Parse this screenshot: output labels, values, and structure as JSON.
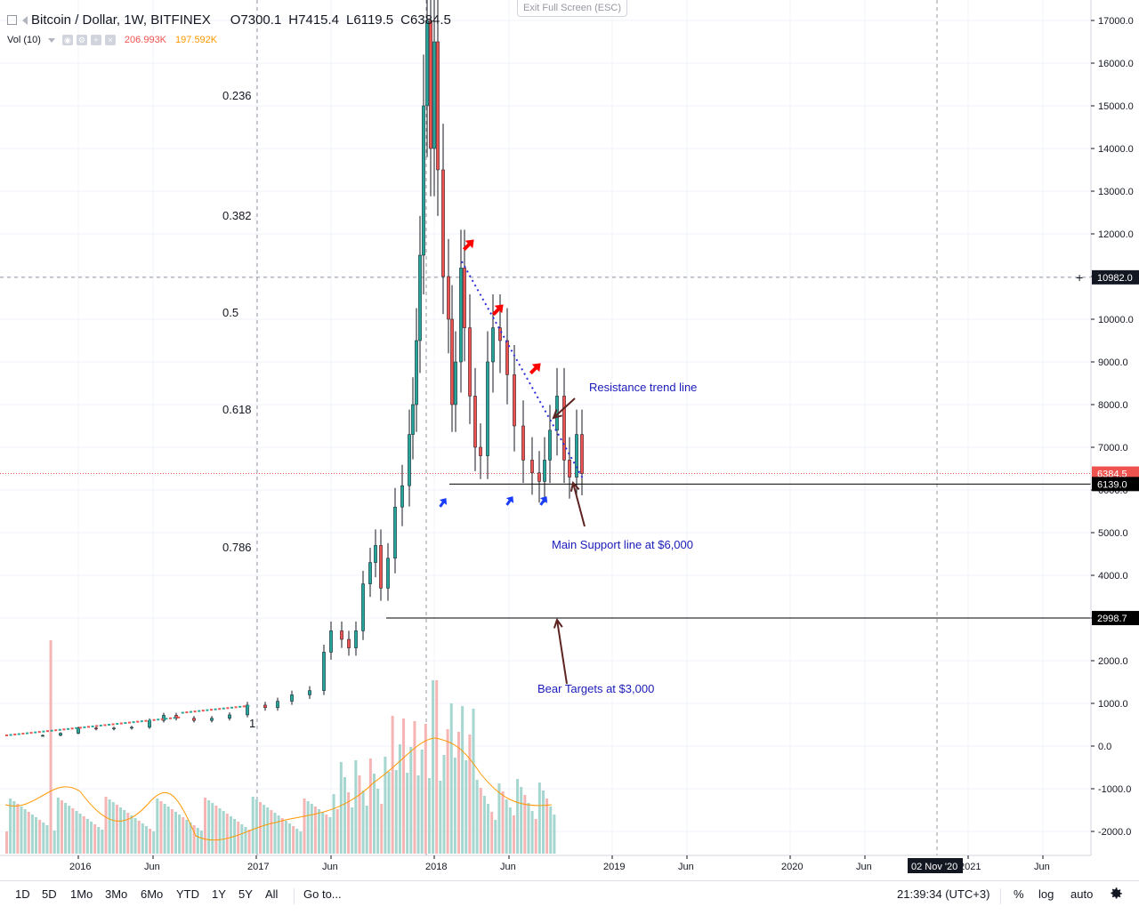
{
  "legend": {
    "symbol": "Bitcoin / Dollar, 1W, BITFINEX",
    "open_label": "O",
    "open": "7300.1",
    "high_label": "H",
    "high": "7415.4",
    "low_label": "L",
    "low": "6119.5",
    "close_label": "C",
    "close": "6384.5"
  },
  "volume": {
    "label": "Vol (10)",
    "value": "206.993K",
    "ma_value": "197.592K"
  },
  "exit_fullscreen": "Exit Full Screen (ESC)",
  "price_axis": {
    "ticks": [
      "17000.0",
      "16000.0",
      "15000.0",
      "14000.0",
      "13000.0",
      "12000.0",
      "11000.0",
      "10000.0",
      "9000.0",
      "8000.0",
      "7000.0",
      "6000.0",
      "5000.0",
      "4000.0",
      "3000.0",
      "2000.0",
      "1000.0",
      "0.0",
      "-1000.0",
      "-2000.0"
    ],
    "crosshair_price": "10982.0",
    "last_price": "6384.5",
    "support_price": "6139.0",
    "bear_target_price": "2998.7"
  },
  "time_axis": {
    "ticks": [
      "2016",
      "Jun",
      "2017",
      "Jun",
      "2018",
      "Jun",
      "2019",
      "Jun",
      "2020",
      "Jun",
      "2021",
      "Jun"
    ],
    "crosshair_date": "02 Nov '20"
  },
  "fib_levels": [
    "0.236",
    "0.382",
    "0.5",
    "0.618",
    "0.786",
    "1"
  ],
  "annotations": {
    "resistance": "Resistance trend line",
    "support": "Main Support line at $6,000",
    "bear": "Bear Targets at $3,000"
  },
  "colors": {
    "up": "#26a69a",
    "down": "#ef5350",
    "volume_up": "#a5d6cf",
    "volume_down": "#f5b5b4",
    "ma": "#ff9800",
    "annotation_text": "#1a1aba",
    "trend_line": "#2d2dd8",
    "red_arrow": "#ff0000",
    "blue_arrow": "#1a3cff",
    "brown_arrow": "#5d2320"
  },
  "toolbar": {
    "timeframes": [
      "1D",
      "5D",
      "1Mo",
      "3Mo",
      "6Mo",
      "YTD",
      "1Y",
      "5Y",
      "All"
    ],
    "goto": "Go to...",
    "clock": "21:39:34 (UTC+3)",
    "percent": "%",
    "log": "log",
    "auto": "auto"
  },
  "chart_data": {
    "type": "candlestick",
    "title": "Bitcoin / Dollar, 1W, BITFINEX",
    "price_series": [
      [
        2015.8,
        250
      ],
      [
        2015.9,
        300
      ],
      [
        2016.0,
        420
      ],
      [
        2016.1,
        400
      ],
      [
        2016.2,
        420
      ],
      [
        2016.3,
        440
      ],
      [
        2016.4,
        600
      ],
      [
        2016.48,
        720
      ],
      [
        2016.55,
        650
      ],
      [
        2016.65,
        600
      ],
      [
        2016.75,
        650
      ],
      [
        2016.85,
        730
      ],
      [
        2016.95,
        960
      ],
      [
        2017.05,
        900
      ],
      [
        2017.12,
        1050
      ],
      [
        2017.2,
        1200
      ],
      [
        2017.3,
        1300
      ],
      [
        2017.38,
        2200
      ],
      [
        2017.42,
        2700
      ],
      [
        2017.48,
        2500
      ],
      [
        2017.52,
        2300
      ],
      [
        2017.56,
        2700
      ],
      [
        2017.6,
        3800
      ],
      [
        2017.64,
        4300
      ],
      [
        2017.67,
        4700
      ],
      [
        2017.7,
        3700
      ],
      [
        2017.74,
        4400
      ],
      [
        2017.78,
        5600
      ],
      [
        2017.82,
        6100
      ],
      [
        2017.86,
        7300
      ],
      [
        2017.88,
        8000
      ],
      [
        2017.9,
        9500
      ],
      [
        2017.92,
        11500
      ],
      [
        2017.94,
        15000
      ],
      [
        2017.96,
        17000
      ],
      [
        2017.98,
        14000
      ],
      [
        2018.0,
        16500
      ],
      [
        2018.02,
        13500
      ],
      [
        2018.05,
        11000
      ],
      [
        2018.08,
        10000
      ],
      [
        2018.1,
        8000
      ],
      [
        2018.12,
        9000
      ],
      [
        2018.15,
        11200
      ],
      [
        2018.17,
        9800
      ],
      [
        2018.2,
        8200
      ],
      [
        2018.23,
        7000
      ],
      [
        2018.26,
        6800
      ],
      [
        2018.3,
        9000
      ],
      [
        2018.33,
        9800
      ],
      [
        2018.37,
        9500
      ],
      [
        2018.41,
        8700
      ],
      [
        2018.45,
        7500
      ],
      [
        2018.5,
        6700
      ],
      [
        2018.55,
        6400
      ],
      [
        2018.59,
        6200
      ],
      [
        2018.62,
        6700
      ],
      [
        2018.65,
        7400
      ],
      [
        2018.69,
        8200
      ],
      [
        2018.73,
        6700
      ],
      [
        2018.76,
        6300
      ],
      [
        2018.8,
        7300
      ],
      [
        2018.83,
        6384.5
      ]
    ],
    "volume_ma_period": 10,
    "fib_retracement": {
      "levels": [
        0.236,
        0.382,
        0.5,
        0.618,
        0.786,
        1
      ]
    },
    "horizontal_lines": [
      6139.0,
      2998.7
    ],
    "trend_line": {
      "from": [
        2018.15,
        11500
      ],
      "to": [
        2018.86,
        6200
      ]
    },
    "y_range": [
      -2500,
      17500
    ],
    "x_ticks": [
      "2016",
      "Jun",
      "2017",
      "Jun",
      "2018",
      "Jun",
      "2019",
      "Jun",
      "2020",
      "Jun",
      "2021",
      "Jun"
    ]
  }
}
